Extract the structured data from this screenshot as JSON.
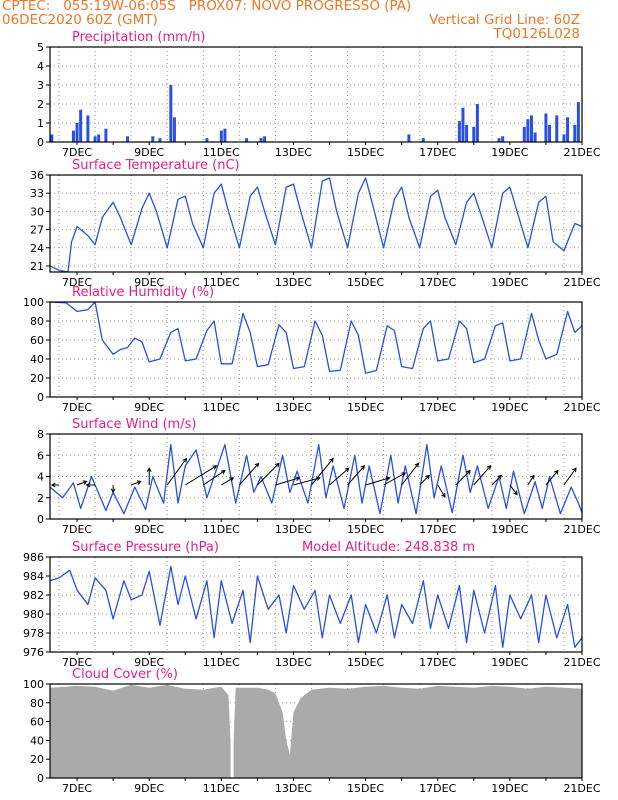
{
  "header": {
    "line1_left": "CPTEC:   055:19W-06:05S   PROX07: NOVO PROGRESSO (PA)",
    "line2_left": "06DEC2020 60Z (GMT)",
    "line2_right": "Vertical Grid Line: 60Z",
    "line3_right": "TQ0126L028"
  },
  "colors": {
    "header": "#e8782a",
    "title": "#e0208a",
    "series": "#2b4fe0",
    "cloud": "#aaaaaa",
    "grid": "#9a9a9a",
    "axis": "#000000"
  },
  "x_axis": {
    "tick_labels": [
      "7DEC",
      "9DEC",
      "11DEC",
      "13DEC",
      "15DEC",
      "17DEC",
      "19DEC",
      "21DEC"
    ],
    "start_day": 6.25,
    "end_day": 21.0,
    "gridline_interval_days": 1,
    "gridline_hour_utc": 12
  },
  "model_altitude": "Model Altitude: 248.838 m",
  "chart_data": [
    {
      "type": "bar",
      "title": "Precipitation (mm/h)",
      "ylim": [
        0,
        5
      ],
      "yticks": [
        "0",
        "1",
        "2",
        "3",
        "4",
        "5"
      ],
      "x": [
        6.3,
        6.9,
        7.0,
        7.1,
        7.3,
        7.5,
        7.6,
        7.8,
        8.4,
        9.1,
        9.3,
        9.6,
        9.7,
        10.6,
        11.0,
        11.1,
        11.7,
        12.1,
        12.2,
        16.2,
        16.6,
        17.6,
        17.7,
        17.8,
        18.0,
        18.1,
        18.7,
        18.8,
        19.4,
        19.5,
        19.6,
        19.7,
        20.0,
        20.1,
        20.3,
        20.5,
        20.6,
        20.8,
        20.9
      ],
      "values": [
        0.4,
        0.6,
        1.0,
        1.7,
        1.4,
        0.3,
        0.4,
        0.7,
        0.3,
        0.3,
        0.2,
        3.0,
        1.3,
        0.2,
        0.6,
        0.7,
        0.2,
        0.2,
        0.3,
        0.4,
        0.2,
        1.1,
        1.8,
        0.9,
        0.8,
        2.0,
        0.2,
        0.3,
        0.8,
        1.2,
        1.4,
        0.5,
        1.5,
        0.9,
        1.4,
        0.4,
        1.3,
        0.9,
        2.1
      ]
    },
    {
      "type": "line",
      "title": "Surface Temperature (nC)",
      "ylim": [
        20,
        36
      ],
      "yticks": [
        "21",
        "24",
        "27",
        "30",
        "33",
        "36"
      ],
      "ytick_values": [
        21,
        24,
        27,
        30,
        33,
        36
      ],
      "x": [
        6.25,
        6.5,
        6.75,
        6.85,
        7.0,
        7.3,
        7.5,
        7.7,
        8.0,
        8.2,
        8.5,
        8.8,
        9.0,
        9.2,
        9.5,
        9.8,
        10.0,
        10.2,
        10.5,
        10.8,
        11.0,
        11.2,
        11.5,
        11.8,
        12.0,
        12.2,
        12.5,
        12.8,
        13.0,
        13.2,
        13.5,
        13.8,
        14.0,
        14.2,
        14.5,
        14.8,
        15.0,
        15.2,
        15.5,
        15.8,
        16.0,
        16.2,
        16.5,
        16.8,
        17.0,
        17.2,
        17.5,
        17.8,
        18.0,
        18.2,
        18.5,
        18.8,
        19.0,
        19.2,
        19.5,
        19.8,
        20.0,
        20.2,
        20.5,
        20.8,
        21.0
      ],
      "values": [
        21.0,
        20.3,
        20.0,
        25.0,
        27.5,
        26.0,
        24.5,
        29.0,
        31.5,
        29.0,
        24.5,
        30.5,
        33.0,
        30.0,
        24.0,
        32.0,
        32.5,
        28.0,
        24.0,
        33.0,
        34.5,
        30.0,
        24.0,
        32.5,
        34.0,
        30.0,
        24.5,
        34.0,
        34.5,
        30.0,
        24.0,
        35.0,
        35.5,
        30.0,
        24.0,
        33.0,
        35.5,
        31.0,
        24.0,
        32.0,
        34.0,
        29.0,
        24.0,
        32.5,
        33.5,
        29.0,
        24.5,
        31.5,
        33.0,
        29.5,
        24.0,
        33.0,
        34.0,
        30.0,
        24.0,
        31.5,
        32.5,
        25.0,
        23.5,
        28.0,
        27.5
      ]
    },
    {
      "type": "line",
      "title": "Relative Humidity (%)",
      "ylim": [
        0,
        100
      ],
      "yticks": [
        "0",
        "20",
        "40",
        "60",
        "80",
        "100"
      ],
      "x": [
        6.25,
        6.7,
        7.0,
        7.3,
        7.5,
        7.7,
        8.0,
        8.2,
        8.4,
        8.6,
        8.8,
        9.0,
        9.3,
        9.6,
        9.8,
        10.0,
        10.3,
        10.6,
        10.8,
        11.0,
        11.3,
        11.6,
        11.8,
        12.0,
        12.3,
        12.6,
        12.8,
        13.0,
        13.3,
        13.6,
        13.8,
        14.0,
        14.3,
        14.6,
        14.8,
        15.0,
        15.3,
        15.6,
        15.8,
        16.0,
        16.3,
        16.6,
        16.8,
        17.0,
        17.3,
        17.6,
        17.8,
        18.0,
        18.3,
        18.6,
        18.8,
        19.0,
        19.3,
        19.6,
        19.8,
        20.0,
        20.3,
        20.6,
        20.8,
        21.0
      ],
      "values": [
        100,
        99,
        90,
        92,
        100,
        60,
        45,
        50,
        52,
        62,
        58,
        37,
        40,
        68,
        72,
        38,
        40,
        70,
        80,
        35,
        35,
        88,
        68,
        32,
        34,
        76,
        68,
        30,
        32,
        80,
        65,
        27,
        28,
        80,
        65,
        25,
        28,
        75,
        70,
        32,
        30,
        72,
        80,
        38,
        40,
        80,
        72,
        36,
        40,
        75,
        78,
        38,
        40,
        88,
        60,
        40,
        45,
        90,
        68,
        75
      ]
    },
    {
      "type": "line",
      "title": "Surface Wind (m/s)",
      "ylim": [
        0,
        8
      ],
      "yticks": [
        "0",
        "2",
        "4",
        "6",
        "8"
      ],
      "x": [
        6.25,
        6.6,
        6.9,
        7.1,
        7.4,
        7.8,
        8.0,
        8.3,
        8.6,
        8.9,
        9.1,
        9.4,
        9.6,
        9.8,
        10.0,
        10.3,
        10.6,
        10.9,
        11.1,
        11.4,
        11.7,
        11.9,
        12.1,
        12.4,
        12.7,
        12.9,
        13.1,
        13.4,
        13.7,
        13.9,
        14.1,
        14.4,
        14.7,
        14.9,
        15.1,
        15.4,
        15.7,
        15.9,
        16.1,
        16.4,
        16.7,
        16.9,
        17.1,
        17.4,
        17.7,
        17.9,
        18.1,
        18.4,
        18.7,
        18.9,
        19.1,
        19.4,
        19.7,
        19.9,
        20.1,
        20.4,
        20.7,
        20.9,
        21.0
      ],
      "values": [
        3.0,
        2.0,
        3.4,
        1.0,
        4.0,
        0.8,
        2.5,
        0.5,
        3.0,
        0.9,
        4.0,
        1.5,
        7.0,
        1.5,
        5.0,
        6.5,
        2.0,
        5.0,
        7.0,
        1.5,
        6.0,
        2.5,
        4.0,
        1.5,
        6.0,
        2.5,
        4.5,
        1.5,
        7.0,
        2.0,
        5.0,
        1.0,
        6.0,
        1.5,
        5.0,
        0.5,
        6.0,
        1.5,
        5.0,
        0.5,
        7.0,
        2.0,
        5.0,
        0.6,
        6.0,
        2.5,
        5.0,
        1.0,
        4.0,
        1.0,
        4.5,
        0.5,
        3.5,
        1.0,
        4.0,
        0.5,
        3.0,
        1.5,
        0.6
      ],
      "vectors": {
        "x": [
          6.5,
          7.0,
          7.5,
          8.0,
          8.5,
          9.0,
          9.5,
          10.0,
          10.5,
          11.0,
          11.5,
          12.0,
          12.5,
          13.0,
          13.5,
          14.0,
          14.5,
          15.0,
          15.5,
          16.0,
          16.5,
          17.0,
          17.5,
          18.0,
          18.5,
          19.0,
          19.5,
          20.0,
          20.5
        ],
        "u": [
          -0.6,
          0.8,
          -0.7,
          0.0,
          0.8,
          0.0,
          1.6,
          2.6,
          1.8,
          1.0,
          1.6,
          1.8,
          2.0,
          2.2,
          1.8,
          1.6,
          1.4,
          2.0,
          1.8,
          1.4,
          0.8,
          0.6,
          1.2,
          1.4,
          0.8,
          0.6,
          0.5,
          1.0,
          1.0
        ],
        "v": [
          0.0,
          0.3,
          0.0,
          -0.6,
          0.3,
          1.4,
          2.2,
          1.6,
          1.2,
          0.6,
          1.8,
          1.8,
          0.6,
          0.6,
          2.2,
          1.4,
          1.6,
          0.6,
          1.0,
          1.8,
          0.8,
          -1.0,
          1.2,
          1.6,
          0.8,
          -0.8,
          0.8,
          1.2,
          1.4
        ]
      }
    },
    {
      "type": "line",
      "title": "Surface Pressure (hPa)",
      "ylim": [
        976,
        986
      ],
      "yticks": [
        "976",
        "978",
        "980",
        "982",
        "984",
        "986"
      ],
      "x": [
        6.25,
        6.5,
        6.8,
        7.0,
        7.3,
        7.5,
        7.8,
        8.0,
        8.3,
        8.5,
        8.8,
        9.0,
        9.3,
        9.6,
        9.8,
        10.0,
        10.3,
        10.6,
        10.8,
        11.0,
        11.3,
        11.6,
        11.8,
        12.0,
        12.3,
        12.6,
        12.8,
        13.0,
        13.3,
        13.6,
        13.8,
        14.0,
        14.3,
        14.6,
        14.8,
        15.0,
        15.3,
        15.6,
        15.8,
        16.0,
        16.3,
        16.6,
        16.8,
        17.0,
        17.3,
        17.6,
        17.8,
        18.0,
        18.3,
        18.6,
        18.8,
        19.0,
        19.3,
        19.6,
        19.8,
        20.0,
        20.3,
        20.6,
        20.8,
        21.0
      ],
      "values": [
        983.5,
        983.8,
        984.6,
        982.5,
        981.0,
        983.8,
        982.5,
        979.5,
        983.5,
        981.5,
        982.0,
        984.5,
        978.8,
        985.0,
        981.0,
        984.0,
        979.5,
        983.5,
        977.5,
        983.5,
        979.0,
        982.5,
        977.0,
        984.0,
        980.5,
        982.0,
        978.0,
        983.0,
        980.5,
        982.5,
        977.5,
        982.0,
        979.0,
        982.0,
        977.0,
        981.0,
        978.0,
        982.0,
        977.5,
        981.0,
        979.0,
        983.5,
        978.5,
        982.0,
        978.5,
        983.0,
        977.0,
        982.5,
        978.0,
        983.0,
        976.5,
        982.0,
        979.5,
        982.0,
        977.0,
        982.0,
        977.5,
        981.0,
        976.5,
        977.5
      ]
    },
    {
      "type": "area",
      "title": "Cloud Cover (%)",
      "ylim": [
        0,
        100
      ],
      "yticks": [
        "0",
        "20",
        "40",
        "60",
        "80",
        "100"
      ],
      "x": [
        6.25,
        7.0,
        7.5,
        8.0,
        8.5,
        9.0,
        9.5,
        10.0,
        10.5,
        11.0,
        11.2,
        11.3,
        11.4,
        12.0,
        12.3,
        12.5,
        12.7,
        12.8,
        12.9,
        13.0,
        13.2,
        13.5,
        14.0,
        14.5,
        15.0,
        15.5,
        16.0,
        16.5,
        17.0,
        17.5,
        18.0,
        18.5,
        19.0,
        19.5,
        20.0,
        20.5,
        21.0
      ],
      "values": [
        96,
        98,
        97,
        93,
        99,
        96,
        99,
        95,
        94,
        97,
        88,
        0,
        96,
        96,
        94,
        90,
        70,
        40,
        25,
        70,
        85,
        94,
        96,
        95,
        97,
        98,
        96,
        95,
        98,
        97,
        96,
        98,
        97,
        95,
        97,
        96,
        95
      ]
    }
  ]
}
